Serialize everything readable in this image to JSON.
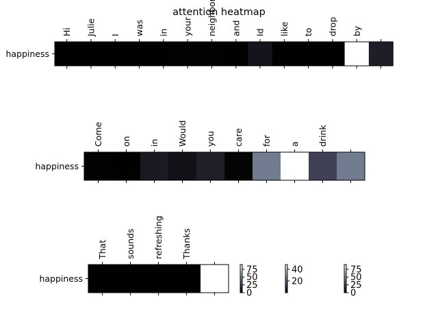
{
  "chart_data": {
    "type": "heatmap",
    "title": "attention heatmap",
    "colormap": "bone",
    "colors": {
      "low": "#000000",
      "high": "#ffffff",
      "frame": "#000000"
    },
    "heatmaps": [
      {
        "ylabel": "happiness",
        "tokens": [
          "Hi",
          "Julie",
          "I",
          "was",
          "in",
          "your",
          "neighborhood",
          "and",
          "Id",
          "like",
          "to",
          "drop",
          "by",
          ""
        ],
        "values": [
          0.3,
          0.2,
          0.5,
          0.4,
          0.4,
          0.6,
          0.7,
          0.5,
          8.0,
          0.3,
          0.3,
          0.5,
          90,
          12
        ],
        "vmax": 90
      },
      {
        "ylabel": "happiness",
        "tokens": [
          "Come",
          "on",
          "in",
          "Would",
          "you",
          "care",
          "for",
          "a",
          "drink",
          ""
        ],
        "values": [
          0.4,
          0.3,
          5.5,
          3.5,
          6.5,
          0.8,
          24,
          48,
          13.5,
          24
        ],
        "vmax": 48
      },
      {
        "ylabel": "happiness",
        "tokens": [
          "That",
          "sounds",
          "refreshing",
          "Thanks",
          ""
        ],
        "values": [
          0.3,
          0.2,
          0.2,
          0.4,
          90
        ],
        "vmax": 90
      }
    ],
    "colorbars": [
      {
        "ticks": [
          "0",
          "25",
          "50",
          "75"
        ],
        "tick_values": [
          0,
          25,
          50,
          75
        ],
        "max": 90
      },
      {
        "ticks": [
          "20",
          "40"
        ],
        "tick_values": [
          20,
          40
        ],
        "max": 48
      },
      {
        "ticks": [
          "0",
          "25",
          "50",
          "75"
        ],
        "tick_values": [
          0,
          25,
          50,
          75
        ],
        "max": 90
      }
    ]
  }
}
